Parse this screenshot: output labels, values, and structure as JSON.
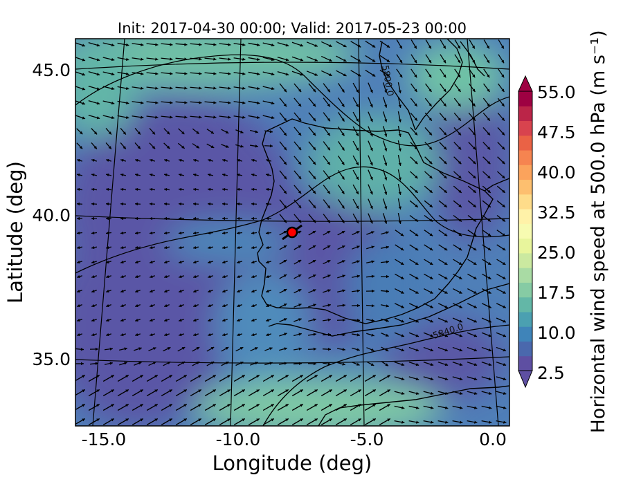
{
  "title": "Init: 2017-04-30 00:00; Valid: 2017-05-23 00:00",
  "map": {
    "xlabel": "Longitude (deg)",
    "ylabel": "Latitude (deg)",
    "xlim": [
      -16,
      0.3
    ],
    "ylim": [
      32.7,
      46.1
    ],
    "xticks": [
      -15.0,
      -10.0,
      -5.0,
      0.0
    ],
    "xtick_labels": [
      "-15.0",
      "-10.0",
      "-5.0",
      "0.0"
    ],
    "yticks": [
      35.0,
      40.0,
      45.0
    ],
    "ytick_labels": [
      "35.0",
      "40.0",
      "45.0"
    ],
    "contour_labels": [
      "5800.0",
      "5840.0"
    ],
    "marker": {
      "lon": -7.7,
      "lat": 39.4,
      "color": "#ff0000"
    }
  },
  "colorbar": {
    "label": "Horizontal wind speed at 500.0 hPa (m s⁻¹)",
    "min": 2.5,
    "max": 55.0,
    "ticks": [
      "2.5",
      "10.0",
      "17.5",
      "25.0",
      "32.5",
      "40.0",
      "47.5",
      "55.0"
    ],
    "colors": [
      "#5e4fa2",
      "#4a68ad",
      "#3f84b9",
      "#4ba0b1",
      "#63b7a7",
      "#86cba4",
      "#a9dba4",
      "#cbe9a0",
      "#e8f59c",
      "#f7fbb1",
      "#fff2a8",
      "#fedc8a",
      "#fdbf6f",
      "#fba35c",
      "#f68450",
      "#ea6245",
      "#d8434e",
      "#bb2548",
      "#9e0142"
    ]
  }
}
